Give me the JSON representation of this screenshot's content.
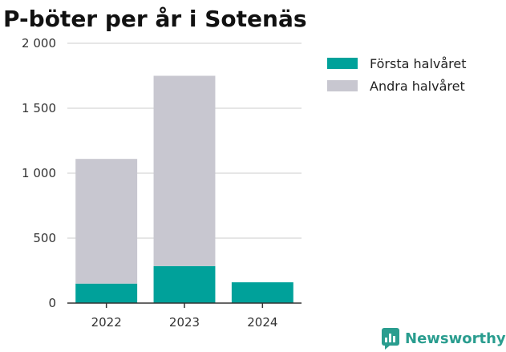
{
  "chart_data": {
    "type": "bar",
    "stacked": true,
    "title": "P-böter per år i Sotenäs",
    "xlabel": "",
    "ylabel": "",
    "categories": [
      "2022",
      "2023",
      "2024"
    ],
    "series": [
      {
        "name": "Första halvåret",
        "color": "#00a19a",
        "values": [
          150,
          285,
          160
        ]
      },
      {
        "name": "Andra halvåret",
        "color": "#c8c7d0",
        "values": [
          960,
          1465,
          0
        ]
      }
    ],
    "ylim": [
      0,
      2000
    ],
    "yticks": [
      0,
      500,
      1000,
      1500,
      2000
    ],
    "ytick_labels": [
      "0",
      "500",
      "1 000",
      "1 500",
      "2 000"
    ],
    "grid": true,
    "legend_position": "right"
  },
  "branding": {
    "logo_text": "Newsworthy",
    "logo_icon": "newsworthy-chart-icon",
    "color": "#2a9d8f"
  }
}
